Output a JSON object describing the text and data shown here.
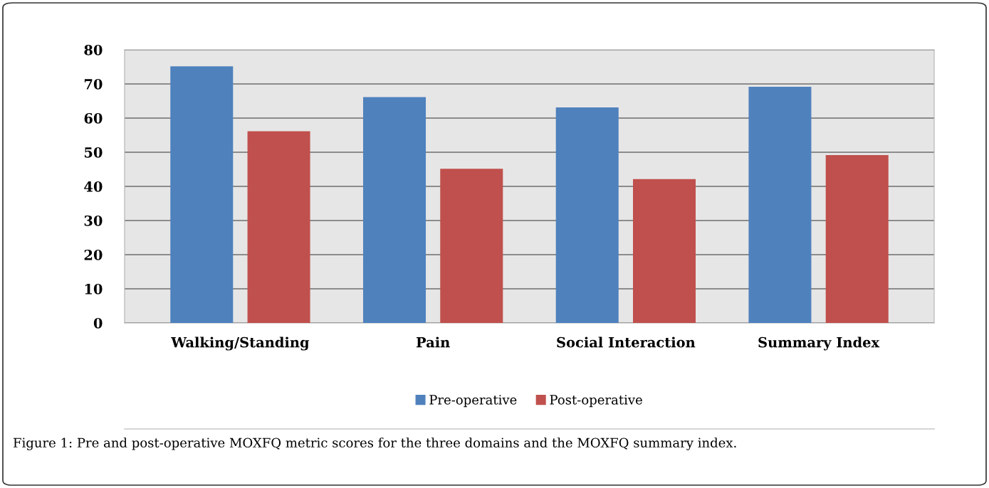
{
  "chart_data": {
    "type": "bar",
    "categories": [
      "Walking/Standing",
      "Pain",
      "Social Interaction",
      "Summary Index"
    ],
    "series": [
      {
        "name": "Pre-operative",
        "color": "#4f81bd",
        "values": [
          75,
          66,
          63,
          69
        ]
      },
      {
        "name": "Post-operative",
        "color": "#c0504d",
        "values": [
          56,
          45,
          42,
          49
        ]
      }
    ],
    "ylim": [
      0,
      80
    ],
    "yticks": [
      0,
      10,
      20,
      30,
      40,
      50,
      60,
      70,
      80
    ],
    "grid": "y",
    "legend": "bottom",
    "annotations": [
      "Figure 1: Pre and post-operative MOXFQ metric scores for the three domains and the MOXFQ summary index."
    ]
  }
}
